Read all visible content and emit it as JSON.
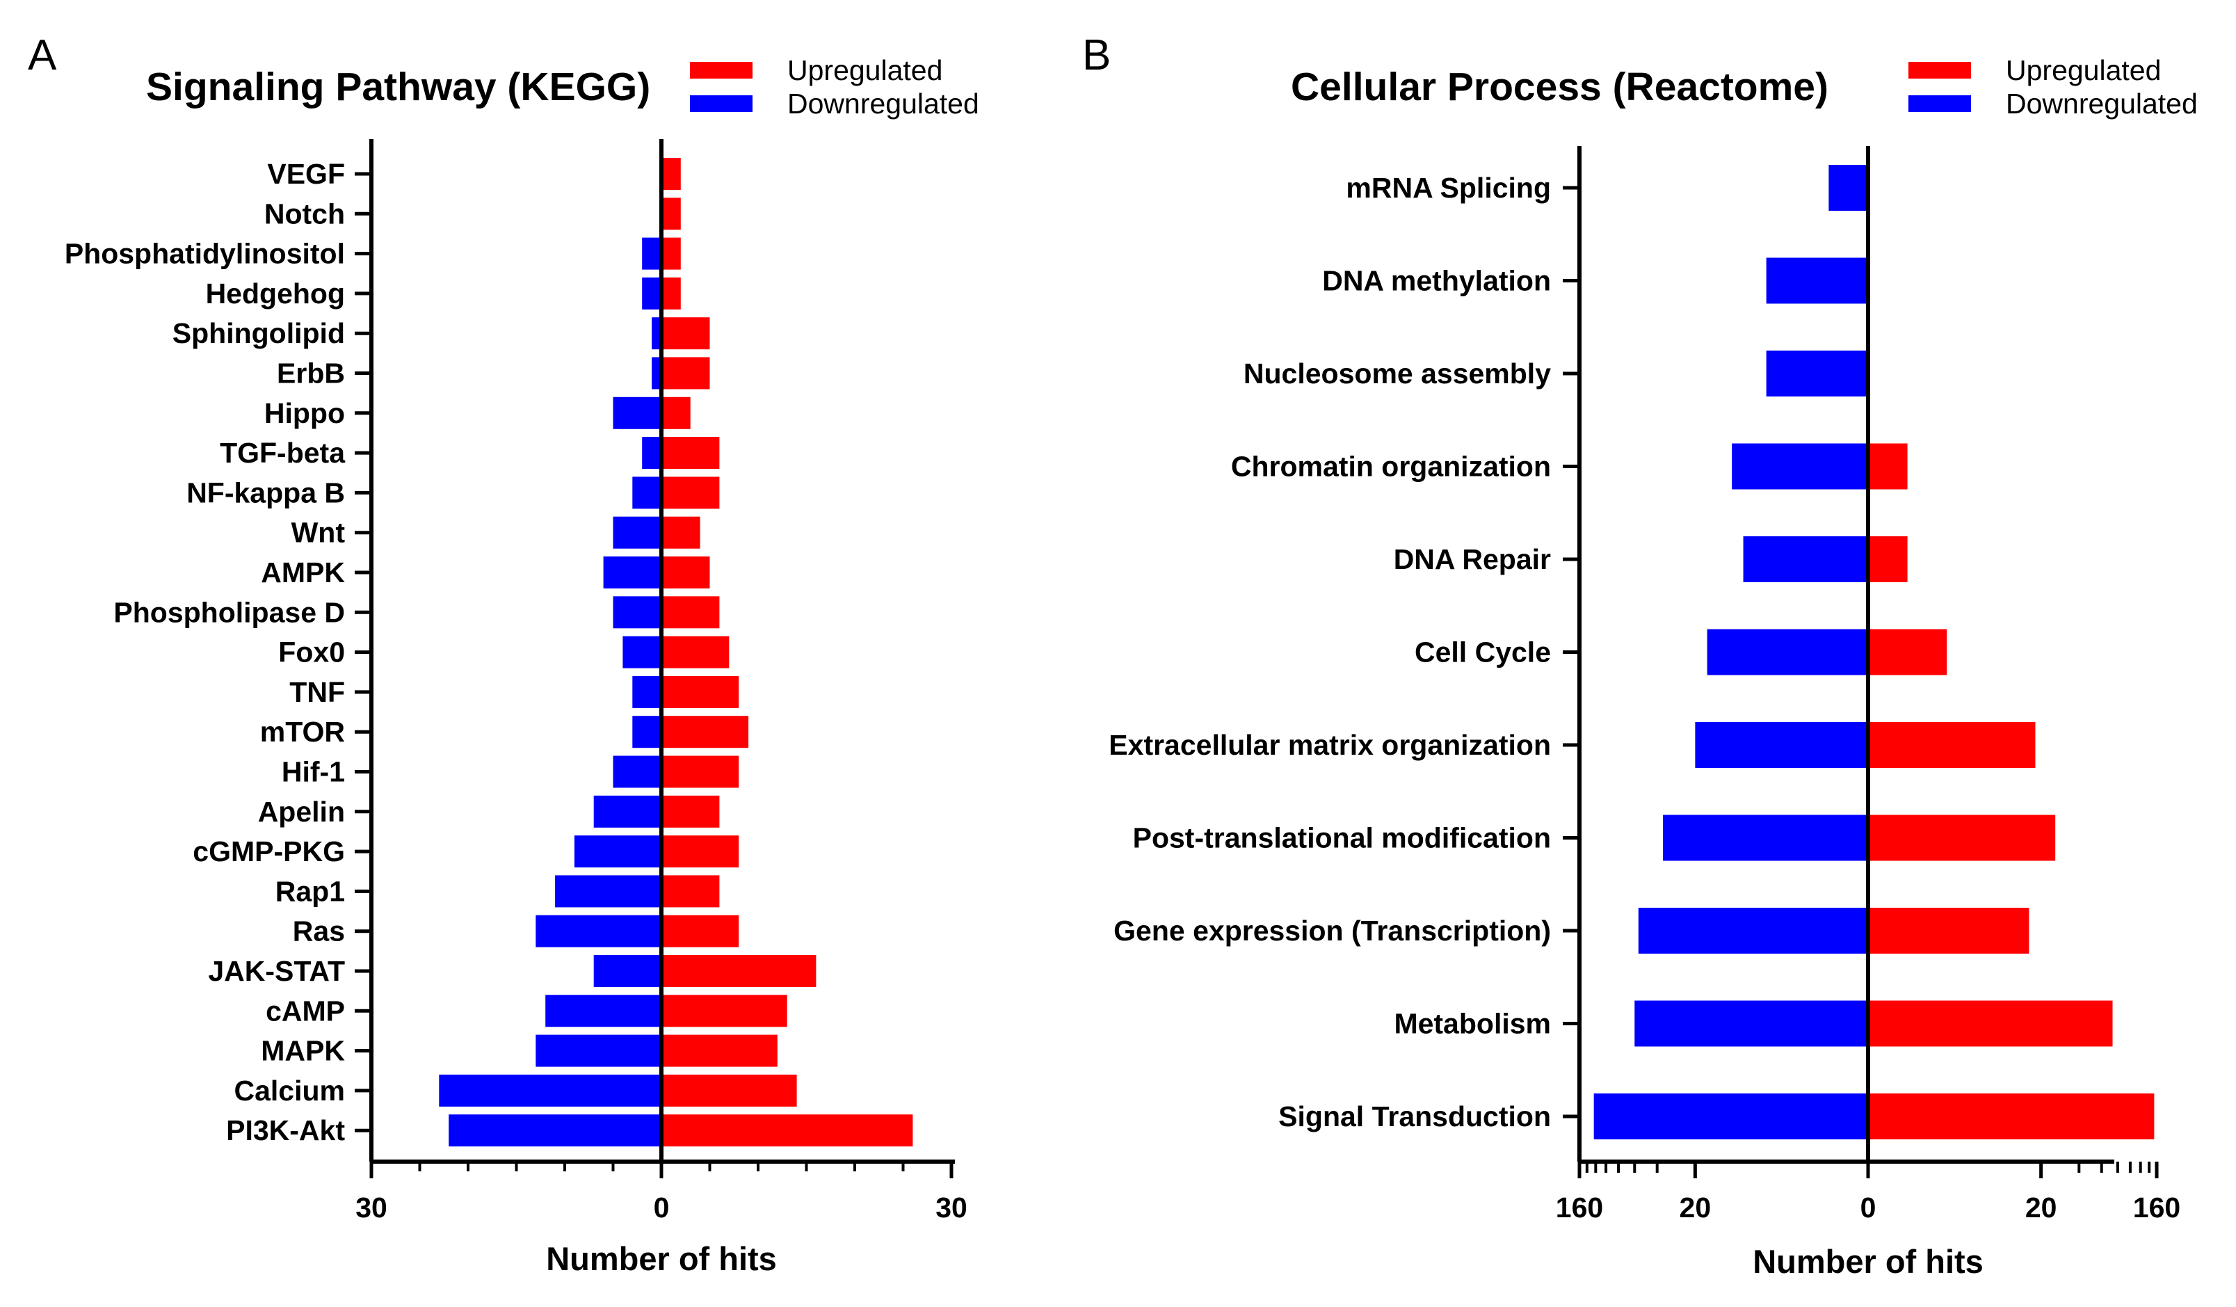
{
  "colors": {
    "up": "#ff0000",
    "down": "#0000ff",
    "axis": "#000000"
  },
  "chart_data": [
    {
      "type": "bar",
      "orientation": "horizontal-diverging",
      "panel": "A",
      "title": "Signaling Pathway (KEGG)",
      "xlabel": "Number of hits",
      "xlim": [
        -30,
        30
      ],
      "xticks": [
        {
          "v": -30,
          "label": "30"
        },
        {
          "v": 0,
          "label": "0"
        },
        {
          "v": 30,
          "label": "30"
        }
      ],
      "minor_ticks": [
        -25,
        -20,
        -15,
        -10,
        -5,
        5,
        10,
        15,
        20,
        25
      ],
      "legend": [
        "Upregulated",
        "Downregulated"
      ],
      "categories": [
        "VEGF",
        "Notch",
        "Phosphatidylinositol",
        "Hedgehog",
        "Sphingolipid",
        "ErbB",
        "Hippo",
        "TGF-beta",
        "NF-kappa B",
        "Wnt",
        "AMPK",
        "Phospholipase D",
        "Fox0",
        "TNF",
        "mTOR",
        "Hif-1",
        "Apelin",
        "cGMP-PKG",
        "Rap1",
        "Ras",
        "JAK-STAT",
        "cAMP",
        "MAPK",
        "Calcium",
        "PI3K-Akt"
      ],
      "series": [
        {
          "name": "Upregulated",
          "values": [
            2,
            2,
            2,
            2,
            5,
            5,
            3,
            6,
            6,
            4,
            5,
            6,
            7,
            8,
            9,
            8,
            6,
            8,
            6,
            8,
            16,
            13,
            12,
            14,
            26
          ]
        },
        {
          "name": "Downregulated",
          "values": [
            0,
            0,
            2,
            2,
            1,
            1,
            5,
            2,
            3,
            5,
            6,
            5,
            4,
            3,
            3,
            5,
            7,
            9,
            11,
            13,
            7,
            12,
            13,
            23,
            22
          ]
        }
      ]
    },
    {
      "type": "bar",
      "orientation": "horizontal-diverging",
      "scale": "log",
      "panel": "B",
      "title": "Cellular Process (Reactome)",
      "xlabel": "Number of hits",
      "xlim": [
        -160,
        160
      ],
      "xticks": [
        {
          "v": -160,
          "label": "160"
        },
        {
          "v": -20,
          "label": "20"
        },
        {
          "v": 0,
          "label": "0"
        },
        {
          "v": 20,
          "label": "20"
        },
        {
          "v": 160,
          "label": "160"
        }
      ],
      "minor_ticks": [
        -140,
        -120,
        -100,
        -80,
        -60,
        -40,
        40,
        60,
        80,
        100,
        120,
        140
      ],
      "legend": [
        "Upregulated",
        "Downregulated"
      ],
      "categories": [
        "mRNA Splicing",
        "DNA methylation",
        "Nucleosome assembly",
        "Chromatin organization",
        "DNA Repair",
        "Cell Cycle",
        "Extracellular matrix organization",
        "Post-translational modification",
        "Gene expression (Transcription)",
        "Metabolism",
        "Signal Transduction"
      ],
      "series": [
        {
          "name": "Upregulated",
          "values": [
            0,
            0,
            0,
            1,
            1,
            3,
            18,
            26,
            16,
            73,
            153
          ]
        },
        {
          "name": "Downregulated",
          "values": [
            1,
            5,
            5,
            10,
            8,
            16,
            20,
            36,
            56,
            60,
            124
          ]
        }
      ]
    }
  ]
}
